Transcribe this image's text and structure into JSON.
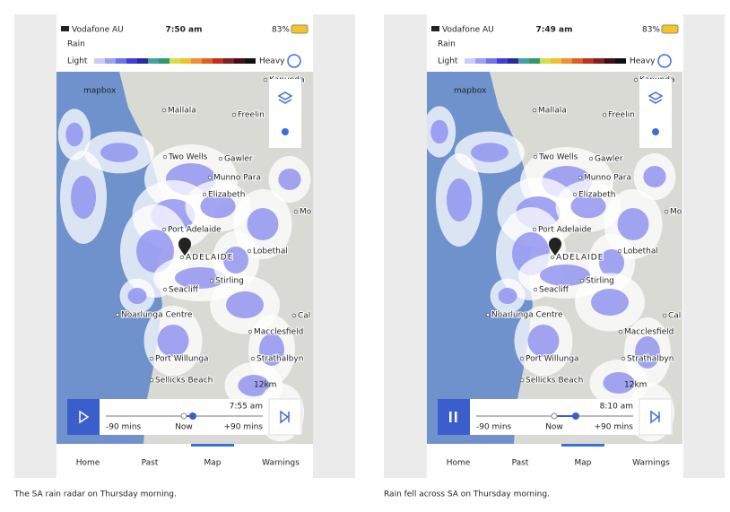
{
  "panels": [
    {
      "status": {
        "carrier": "Vodafone AU",
        "time": "7:50 am",
        "battery": "83%"
      },
      "layer": "Rain",
      "legend": {
        "low": "Light",
        "high": "Heavy"
      },
      "map_brand": "mapbox",
      "map_labels": [
        "Kapunda",
        "Mallala",
        "Freelin",
        "Two Wells",
        "Gawler",
        "Munno Para",
        "Elizabeth",
        "Mo",
        "Port Adelaide",
        "Lobethal",
        "ADELAIDE",
        "Stirling",
        "Seacliff",
        "Noarlunga Centre",
        "Cal",
        "Macclesfield",
        "Port Willunga",
        "Strathalbyn",
        "Sellicks Beach"
      ],
      "scale": "12km",
      "timeline": {
        "time": "7:55 am",
        "start": "-90 mins",
        "now": "Now",
        "end": "+90 mins"
      },
      "tabs": [
        "Home",
        "Past",
        "Map",
        "Warnings"
      ],
      "caption": "The SA rain radar on Thursday morning."
    },
    {
      "status": {
        "carrier": "Vodafone AU",
        "time": "7:49 am",
        "battery": "83%"
      },
      "layer": "Rain",
      "legend": {
        "low": "Light",
        "high": "Heavy"
      },
      "map_brand": "mapbox",
      "map_labels": [
        "Kapunda",
        "Mallala",
        "Freelin",
        "Two Wells",
        "Gawler",
        "Munno Para",
        "Elizabeth",
        "Mo",
        "Port Adelaide",
        "Lobethal",
        "ADELAIDE",
        "Stirling",
        "Seacliff",
        "Noarlunga Centre",
        "Cal",
        "Macclesfield",
        "Port Willunga",
        "Strathalbyn",
        "Sellicks Beach"
      ],
      "scale": "12km",
      "timeline": {
        "time": "8:10 am",
        "start": "-90 mins",
        "now": "Now",
        "end": "+90 mins"
      },
      "tabs": [
        "Home",
        "Past",
        "Map",
        "Warnings"
      ],
      "caption": "Rain fell across SA on Thursday morning."
    }
  ]
}
